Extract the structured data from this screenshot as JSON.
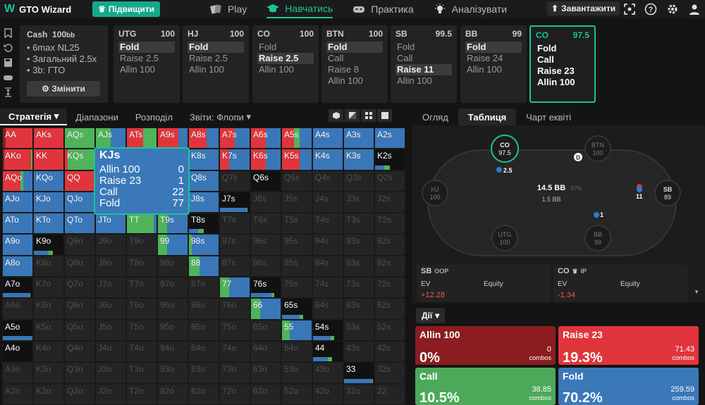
{
  "app": {
    "logo": "GTO Wizard",
    "upgrade": "Підвищити"
  },
  "nav": [
    {
      "label": "Play",
      "icon": "cards-icon"
    },
    {
      "label": "Навчатись",
      "icon": "graduation-cap-icon"
    },
    {
      "label": "Практика",
      "icon": "gamepad-icon"
    },
    {
      "label": "Аналізувати",
      "icon": "lightbulb-icon"
    }
  ],
  "topright": {
    "upload": "Завантажити"
  },
  "config": {
    "title": "Cash",
    "stack": "100",
    "stack_unit": "bb",
    "lines": [
      "6max NL25",
      "Загальний 2.5x",
      "3b: ГТО"
    ],
    "change": "Змінити"
  },
  "positions": [
    {
      "name": "UTG",
      "stack": "100",
      "actions": [
        "Fold",
        "Raise 2.5",
        "Allin 100"
      ],
      "selected": 0
    },
    {
      "name": "HJ",
      "stack": "100",
      "actions": [
        "Fold",
        "Raise 2.5",
        "Allin 100"
      ],
      "selected": 0
    },
    {
      "name": "CO",
      "stack": "100",
      "actions": [
        "Fold",
        "Raise 2.5",
        "Allin 100"
      ],
      "selected": 1
    },
    {
      "name": "BTN",
      "stack": "100",
      "actions": [
        "Fold",
        "Call",
        "Raise 8",
        "Allin 100"
      ],
      "selected": 0
    },
    {
      "name": "SB",
      "stack": "99.5",
      "actions": [
        "Fold",
        "Call",
        "Raise 11",
        "Allin 100"
      ],
      "selected": 2
    },
    {
      "name": "BB",
      "stack": "99",
      "actions": [
        "Fold",
        "Raise 24",
        "Allin 100"
      ],
      "selected": 0
    },
    {
      "name": "CO",
      "stack": "97.5",
      "actions": [
        "Fold",
        "Call",
        "Raise 23",
        "Allin 100"
      ],
      "selected": -1
    }
  ],
  "left_tabs": {
    "strategy": "Стратегія",
    "ranges": "Діапазони",
    "breakdown": "Розподіл",
    "reports": "Звіти: Флопи"
  },
  "tooltip": {
    "hand": "KJs",
    "rows": [
      {
        "a": "Allin 100",
        "v": "0"
      },
      {
        "a": "Raise 23",
        "v": "1"
      },
      {
        "a": "Call",
        "v": "22"
      },
      {
        "a": "Fold",
        "v": "77"
      }
    ]
  },
  "grid_ranks": [
    "A",
    "K",
    "Q",
    "J",
    "T",
    "9",
    "8",
    "7",
    "6",
    "5",
    "4",
    "3",
    "2"
  ],
  "grid_cells": {
    "AA": {
      "r": 0.9,
      "c": 0,
      "a": 0.1
    },
    "AKs": {
      "r": 1
    },
    "AQs": {
      "r": 0,
      "c": 1
    },
    "AJs": {
      "r": 0,
      "c": 0.5,
      "f": 0.5
    },
    "ATs": {
      "r": 0.55,
      "c": 0.45
    },
    "A9s": {
      "r": 0.7,
      "f": 0.3
    },
    "A8s": {
      "r": 0.6,
      "f": 0.4
    },
    "A7s": {
      "r": 0.5,
      "f": 0.5
    },
    "A6s": {
      "r": 0.5,
      "f": 0.5
    },
    "A5s": {
      "r": 0.4,
      "c": 0.2,
      "f": 0.4
    },
    "A4s": {
      "f": 1
    },
    "A3s": {
      "f": 1
    },
    "A2s": {
      "f": 1
    },
    "AKo": {
      "r": 0.9,
      "c": 0.05,
      "a": 0.05
    },
    "KK": {
      "r": 1
    },
    "KQs": {
      "r": 0.1,
      "c": 0.9
    },
    "KJs": {
      "r": 0.01,
      "c": 0.22,
      "f": 0.77
    },
    "KTs": {
      "r": 0.1,
      "c": 0.3,
      "f": 0.6
    },
    "K9s": {
      "f": 1
    },
    "K8s": {
      "f": 1
    },
    "K7s": {
      "r": 0.3,
      "f": 0.7
    },
    "K6s": {
      "r": 0.5,
      "f": 0.5
    },
    "K5s": {
      "r": 0.6,
      "f": 0.4
    },
    "K4s": {
      "f": 1
    },
    "K3s": {
      "f": 1
    },
    "K2s": {
      "f": 0,
      "bar": 0.3
    },
    "AQo": {
      "r": 0.6,
      "c": 0.1,
      "f": 0.3
    },
    "KQo": {
      "f": 1
    },
    "QQ": {
      "r": 1
    },
    "QJs": {
      "c": 0.5,
      "f": 0.5
    },
    "QTs": {
      "c": 0.5,
      "f": 0.5
    },
    "Q9s": {
      "f": 1
    },
    "Q8s": {
      "f": 1
    },
    "Q7s": {
      "dim": 1
    },
    "Q6s": {
      "bar": 0.0
    },
    "Q5s": {
      "dim": 1
    },
    "Q4s": {
      "dim": 1
    },
    "Q3s": {
      "dim": 1
    },
    "Q2s": {
      "dim": 1
    },
    "AJo": {
      "f": 1
    },
    "KJo": {
      "f": 1
    },
    "QJo": {
      "f": 1
    },
    "JJ": {
      "c": 0.5,
      "f": 0.5
    },
    "JTs": {
      "c": 0.5,
      "f": 0.5
    },
    "J9s": {
      "f": 1
    },
    "J8s": {
      "f": 1
    },
    "J7s": {
      "bar": 0.9
    },
    "J6s": {
      "dim": 1
    },
    "J5s": {
      "dim": 1
    },
    "J4s": {
      "dim": 1
    },
    "J3s": {
      "dim": 1
    },
    "J2s": {
      "dim": 1
    },
    "ATo": {
      "f": 1
    },
    "KTo": {
      "f": 1
    },
    "QTo": {
      "f": 1
    },
    "JTo": {
      "f": 1
    },
    "TT": {
      "c": 0.9,
      "f": 0.1
    },
    "T9s": {
      "c": 0.3,
      "f": 0.7
    },
    "T8s": {
      "bar": 0.3
    },
    "T7s": {
      "dim": 1
    },
    "T6s": {
      "dim": 1
    },
    "T5s": {
      "dim": 1
    },
    "T4s": {
      "dim": 1
    },
    "T3s": {
      "dim": 1
    },
    "T2s": {
      "dim": 1
    },
    "A9o": {
      "f": 1
    },
    "K9o": {
      "bar": 0.5
    },
    "Q9o": {
      "dim": 1
    },
    "J9o": {
      "dim": 1
    },
    "T9o": {
      "dim": 1
    },
    "99": {
      "c": 0.3,
      "f": 0.7
    },
    "98s": {
      "c": 0.1,
      "f": 0.9
    },
    "97s": {
      "dim": 1
    },
    "96s": {
      "dim": 1
    },
    "95s": {
      "dim": 1
    },
    "94s": {
      "dim": 1
    },
    "93s": {
      "dim": 1
    },
    "92s": {
      "dim": 1
    },
    "A8o": {
      "f": 1
    },
    "K8o": {
      "dim": 1
    },
    "Q8o": {
      "dim": 1
    },
    "J8o": {
      "dim": 1
    },
    "T8o": {
      "dim": 1
    },
    "98o": {
      "dim": 1
    },
    "88": {
      "c": 0.35,
      "f": 0.65
    },
    "87s": {
      "dim": 1
    },
    "86s": {
      "dim": 1
    },
    "85s": {
      "dim": 1
    },
    "84s": {
      "dim": 1
    },
    "83s": {
      "dim": 1
    },
    "82s": {
      "dim": 1
    },
    "A7o": {
      "bar": 0.9
    },
    "K7o": {
      "dim": 1
    },
    "Q7o": {
      "dim": 1
    },
    "J7o": {
      "dim": 1
    },
    "T7o": {
      "dim": 1
    },
    "97o": {
      "dim": 1
    },
    "87o": {
      "dim": 1
    },
    "77": {
      "c": 0.3,
      "f": 0.7
    },
    "76s": {
      "bar": 0.7
    },
    "75s": {
      "dim": 1
    },
    "74s": {
      "dim": 1
    },
    "73s": {
      "dim": 1
    },
    "72s": {
      "dim": 1
    },
    "A6o": {
      "dim": 1
    },
    "K6o": {
      "dim": 1
    },
    "Q6o": {
      "dim": 1
    },
    "J6o": {
      "dim": 1
    },
    "T6o": {
      "dim": 1
    },
    "96o": {
      "dim": 1
    },
    "86o": {
      "dim": 1
    },
    "76o": {
      "dim": 1
    },
    "66": {
      "c": 0.3,
      "f": 0.7
    },
    "65s": {
      "bar": 0.6
    },
    "64s": {
      "dim": 1
    },
    "63s": {
      "dim": 1
    },
    "62s": {
      "dim": 1
    },
    "A5o": {
      "bar": 1
    },
    "K5o": {
      "dim": 1
    },
    "Q5o": {
      "dim": 1
    },
    "J5o": {
      "dim": 1
    },
    "T5o": {
      "dim": 1
    },
    "95o": {
      "dim": 1
    },
    "85o": {
      "dim": 1
    },
    "75o": {
      "dim": 1
    },
    "65o": {
      "dim": 1
    },
    "55": {
      "c": 0.25,
      "f": 0.75
    },
    "54s": {
      "bar": 0.6
    },
    "53s": {
      "dim": 1
    },
    "52s": {
      "dim": 1
    },
    "A4o": {
      "bar": 0
    },
    "K4o": {
      "dim": 1
    },
    "Q4o": {
      "dim": 1
    },
    "J4o": {
      "dim": 1
    },
    "T4o": {
      "dim": 1
    },
    "94o": {
      "dim": 1
    },
    "84o": {
      "dim": 1
    },
    "74o": {
      "dim": 1
    },
    "64o": {
      "dim": 1
    },
    "54o": {
      "dim": 1
    },
    "44": {
      "bar": 0.5
    },
    "43s": {
      "dim": 1
    },
    "42s": {
      "dim": 1
    },
    "A3o": {
      "dim": 1
    },
    "K3o": {
      "dim": 1
    },
    "Q3o": {
      "dim": 1
    },
    "J3o": {
      "dim": 1
    },
    "T3o": {
      "dim": 1
    },
    "93o": {
      "dim": 1
    },
    "83o": {
      "dim": 1
    },
    "73o": {
      "dim": 1
    },
    "63o": {
      "dim": 1
    },
    "53o": {
      "dim": 1
    },
    "43o": {
      "dim": 1
    },
    "33": {
      "bar": 0.95
    },
    "32s": {
      "dim": 1
    },
    "A2o": {
      "dim": 1
    },
    "K2o": {
      "dim": 1
    },
    "Q2o": {
      "dim": 1
    },
    "J2o": {
      "dim": 1
    },
    "T2o": {
      "dim": 1
    },
    "92o": {
      "dim": 1
    },
    "82o": {
      "dim": 1
    },
    "72o": {
      "dim": 1
    },
    "62o": {
      "dim": 1
    },
    "52o": {
      "dim": 1
    },
    "42o": {
      "dim": 1
    },
    "32o": {
      "dim": 1
    },
    "22": {
      "dim": 1
    }
  },
  "right_tabs": {
    "overview": "Огляд",
    "table": "Таблиця",
    "equity_chart": "Чарт еквіті"
  },
  "table": {
    "pot": "14.5 BB",
    "pot_pct": "37%",
    "to_call": "1.5 BB",
    "seats": [
      {
        "name": "CO",
        "stack": "97.5",
        "active": true
      },
      {
        "name": "BTN",
        "stack": "100"
      },
      {
        "name": "SB",
        "stack": "89"
      },
      {
        "name": "BB",
        "stack": "99"
      },
      {
        "name": "UTG",
        "stack": "100"
      },
      {
        "name": "HJ",
        "stack": "100"
      }
    ],
    "bets": {
      "co": "2.5",
      "sb": "11",
      "bb": "1"
    },
    "dealer": "D"
  },
  "stats": [
    {
      "pos": "SB",
      "tag": "OOP",
      "ev_label": "EV",
      "equity_label": "Equity",
      "ev": "+12.28"
    },
    {
      "pos": "CO",
      "tag": "IP",
      "ev_label": "EV",
      "equity_label": "Equity",
      "ev": "-1.34"
    }
  ],
  "actions_label": "Дії",
  "actions": [
    {
      "name": "Allin 100",
      "pct": "0%",
      "combos": "0",
      "combos_label": "combos",
      "color": "#8b1c20"
    },
    {
      "name": "Raise 23",
      "pct": "19.3%",
      "combos": "71.43",
      "combos_label": "combos",
      "color": "#e0353c"
    },
    {
      "name": "Call",
      "pct": "10.5%",
      "combos": "38.85",
      "combos_label": "combos",
      "color": "#4ca95a"
    },
    {
      "name": "Fold",
      "pct": "70.2%",
      "combos": "259.59",
      "combos_label": "combos",
      "color": "#3a78b8"
    }
  ],
  "colors": {
    "allin": "#8b1c20",
    "raise": "#e0353c",
    "call": "#4fb35a",
    "fold": "#3a77b8",
    "accent": "#19c49a"
  }
}
